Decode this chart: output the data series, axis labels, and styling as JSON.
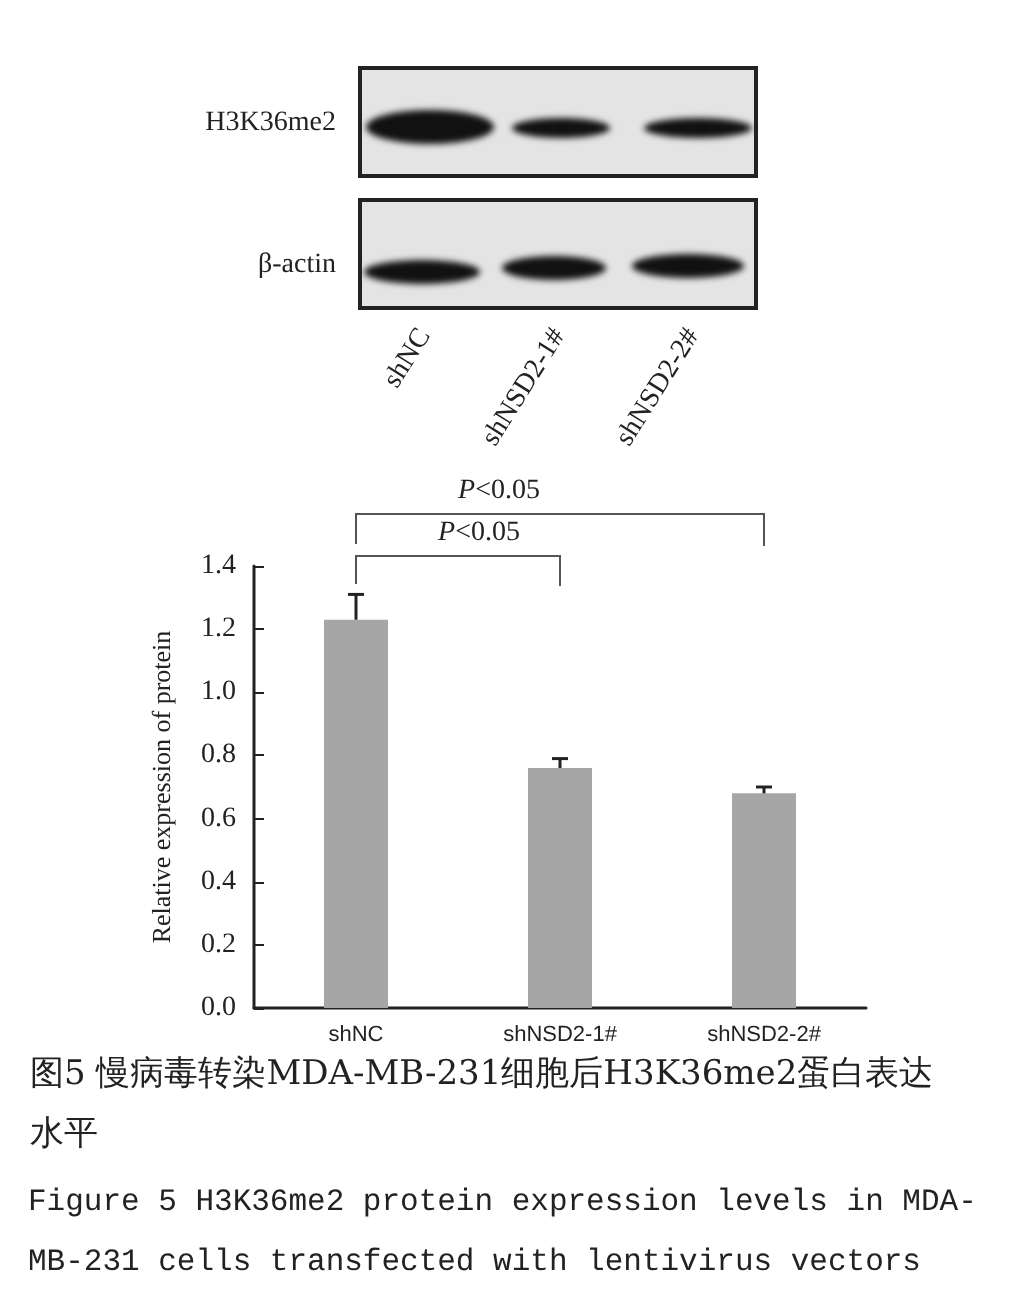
{
  "chart_data": {
    "type": "bar",
    "categories": [
      "shNC",
      "shNSD2-1#",
      "shNSD2-2#"
    ],
    "values": [
      1.23,
      0.76,
      0.68
    ],
    "color": "#a6a6a6",
    "errors": [
      [
        1.23,
        1.31
      ],
      [
        0.76,
        0.79
      ],
      [
        0.68,
        0.7
      ]
    ],
    "ylim": [
      0,
      1.4
    ],
    "yticks": [
      {
        "value": 0,
        "label": "0.0"
      },
      0.2,
      0.4,
      0.6,
      0.8,
      {
        "value": 1,
        "label": "1.0"
      },
      1.2,
      1.4
    ],
    "ylabel": "Relative expression of protein",
    "annotations": [
      "P<0.05",
      "P<0.05",
      "H3K36me2",
      "β-actin",
      "图5 慢病毒转染MDA-MB-231细胞后H3K36me2蛋白表达水平",
      "Figure 5 H3K36me2 protein expression levels in MDA-MB-231 cells transfected with lentivirus vectors"
    ]
  }
}
